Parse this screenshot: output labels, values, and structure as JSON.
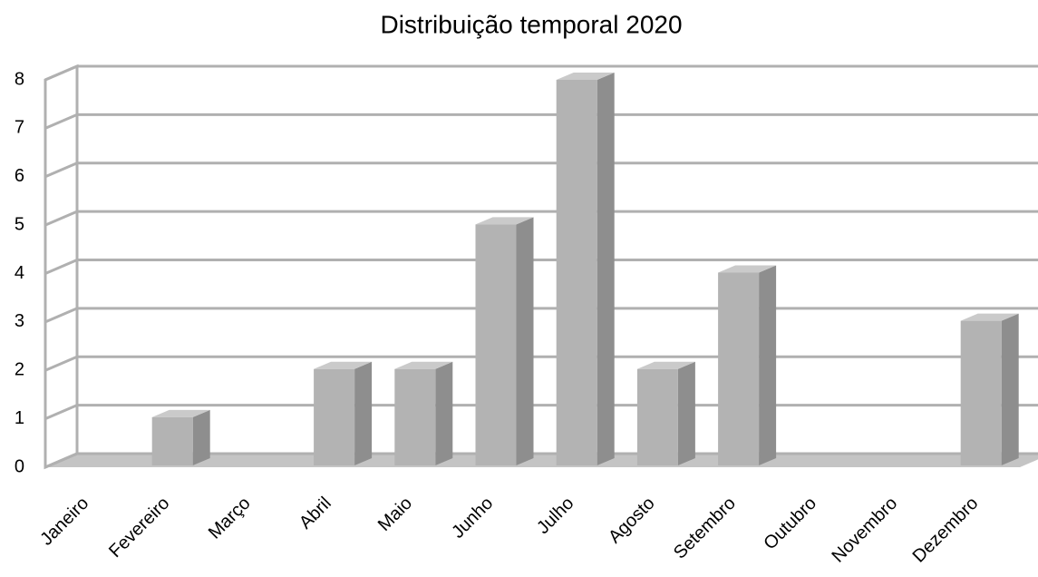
{
  "chart_data": {
    "type": "bar3d",
    "title": "Distribuição temporal 2020",
    "categories": [
      "Janeiro",
      "Fevereiro",
      "Março",
      "Abril",
      "Maio",
      "Junho",
      "Julho",
      "Agosto",
      "Setembro",
      "Outubro",
      "Novembro",
      "Dezembro"
    ],
    "values": [
      0,
      1,
      0,
      2,
      2,
      5,
      8,
      2,
      4,
      0,
      0,
      3
    ],
    "color": "#b3b3b3",
    "ylim": [
      0,
      8
    ],
    "yticks": [
      0,
      1,
      2,
      3,
      4,
      5,
      6,
      7,
      8
    ],
    "grid": true
  }
}
